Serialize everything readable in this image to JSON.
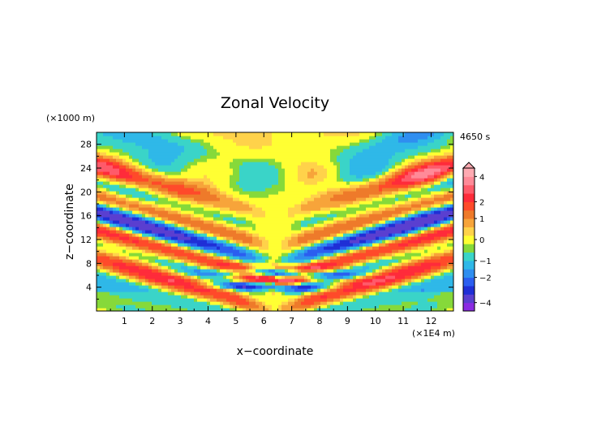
{
  "chart_data": {
    "type": "heatmap",
    "title": "Zonal Velocity",
    "xlabel": "x−coordinate",
    "ylabel": "z−coordinate",
    "x_unit": "(×1E4 m)",
    "y_unit": "(×1000 m)",
    "time_label": "4650 s",
    "xlim": [
      0,
      12.8
    ],
    "ylim": [
      0,
      30
    ],
    "x_ticks": [
      "1",
      "2",
      "3",
      "4",
      "5",
      "6",
      "7",
      "8",
      "9",
      "10",
      "11",
      "12"
    ],
    "y_ticks": [
      "4",
      "8",
      "12",
      "16",
      "20",
      "24",
      "28"
    ],
    "colorbar": {
      "range": [
        -5,
        5
      ],
      "levels": [
        -5,
        -4,
        -3,
        -2.5,
        -2,
        -1.5,
        -1,
        -0.5,
        -0.25,
        0.25,
        0.5,
        1,
        1.5,
        2,
        2.5,
        3,
        4,
        5
      ],
      "tick_labels": [
        "4",
        "2",
        "1",
        "0",
        "−1",
        "−2",
        "−4"
      ],
      "tick_values": [
        4,
        2,
        1,
        0,
        -1,
        -2,
        -4
      ],
      "colors": [
        "#8a2be2",
        "#5a3fd0",
        "#1f2fd6",
        "#2b5ef0",
        "#2f8ef0",
        "#2fb8e8",
        "#3ad4c8",
        "#86d93a",
        "#ffff33",
        "#ffd24a",
        "#f7a43a",
        "#ee7a2a",
        "#ff4a2a",
        "#ff2b3a",
        "#ff5a6a",
        "#ff8a98",
        "#ffaab2"
      ]
    },
    "field": {
      "description_values": "wave pattern centred at x=6.4, symmetric, values in m/s range about -3..3"
    }
  }
}
